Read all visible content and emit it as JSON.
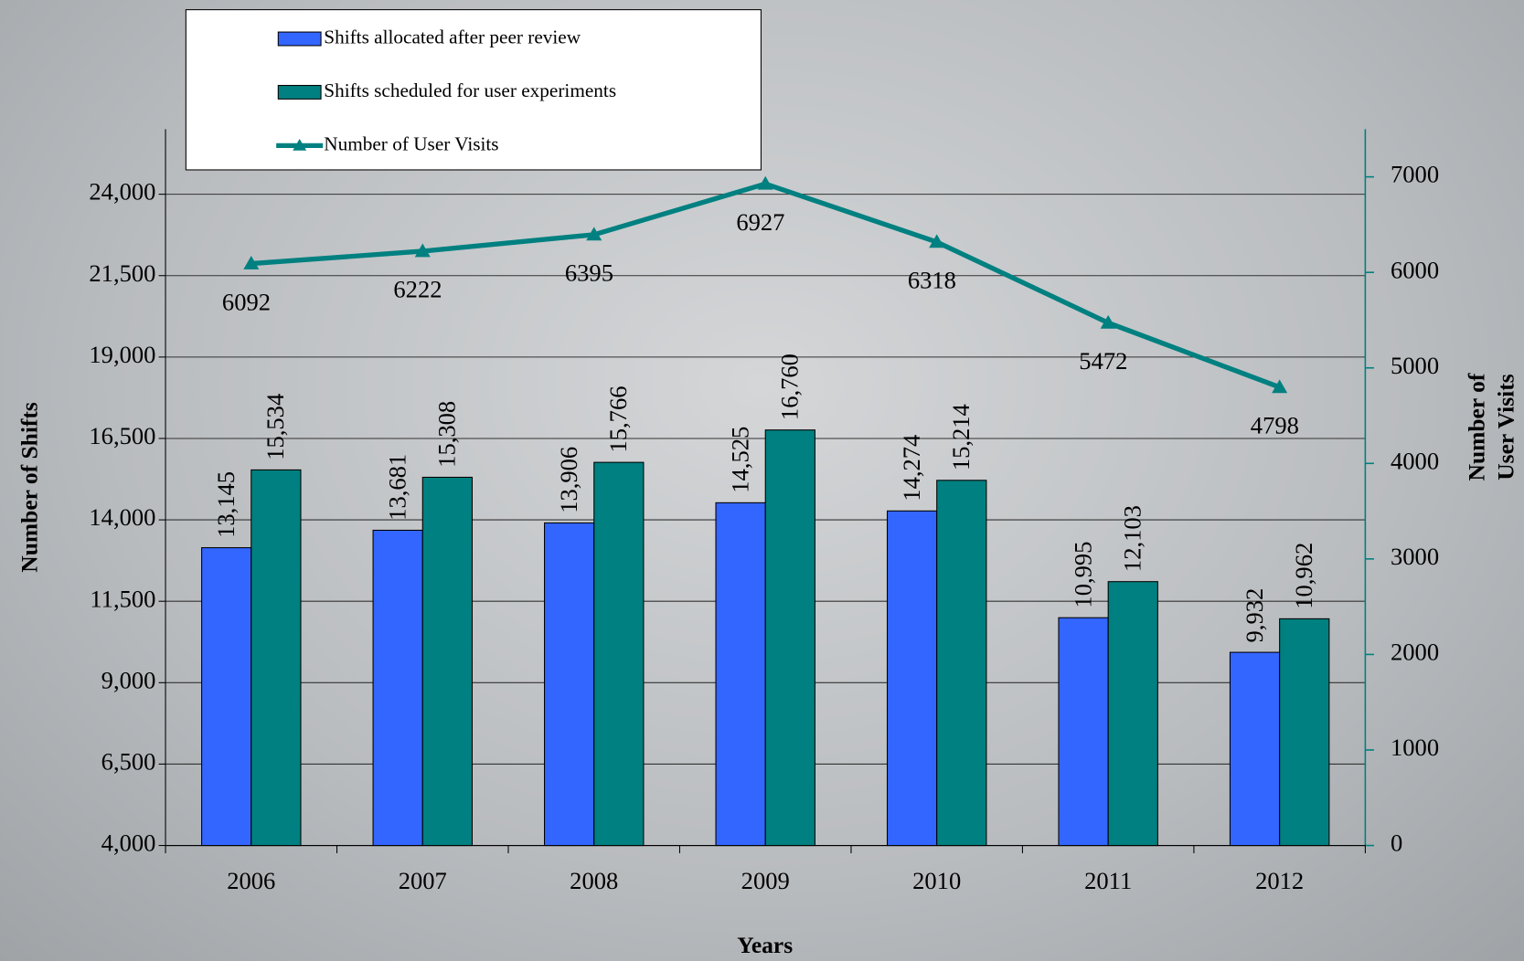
{
  "chart_data": {
    "type": "bar",
    "categories": [
      "2006",
      "2007",
      "2008",
      "2009",
      "2010",
      "2011",
      "2012"
    ],
    "series": [
      {
        "name": "Shifts allocated after peer review",
        "color": "#3366ff",
        "type": "bar",
        "values": [
          13145,
          13681,
          13906,
          14525,
          14274,
          10995,
          9932
        ],
        "value_labels": [
          "13,145",
          "13,681",
          "13,906",
          "14,525",
          "14,274",
          "10,995",
          "9,932"
        ]
      },
      {
        "name": "Shifts scheduled for user experiments",
        "color": "#008080",
        "type": "bar",
        "values": [
          15534,
          15308,
          15766,
          16760,
          15214,
          12103,
          10962
        ],
        "value_labels": [
          "15,534",
          "15,308",
          "15,766",
          "16,760",
          "15,214",
          "12,103",
          "10,962"
        ]
      },
      {
        "name": "Number of User Visits",
        "color": "#008080",
        "type": "line",
        "axis": "y2",
        "values": [
          6092,
          6222,
          6395,
          6927,
          6318,
          5472,
          4798
        ]
      }
    ],
    "x_label": "Years",
    "y_label": "Number of Shifts",
    "y2_label": [
      "Number of",
      "User Visits"
    ],
    "ylim": [
      4000,
      26000
    ],
    "yticks": [
      {
        "value": 4000,
        "label": "4,000"
      },
      {
        "value": 6500,
        "label": "6,500"
      },
      {
        "value": 9000,
        "label": "9,000"
      },
      {
        "value": 11500,
        "label": "11,500"
      },
      {
        "value": 14000,
        "label": "14,000"
      },
      {
        "value": 16500,
        "label": "16,500"
      },
      {
        "value": 19000,
        "label": "19,000"
      },
      {
        "value": 21500,
        "label": "21,500"
      },
      {
        "value": 24000,
        "label": "24,000"
      }
    ],
    "y2lim": [
      0,
      7500
    ],
    "y2ticks": [
      0,
      1000,
      2000,
      3000,
      4000,
      5000,
      6000,
      7000
    ],
    "grid": true,
    "legend": "top-left"
  }
}
